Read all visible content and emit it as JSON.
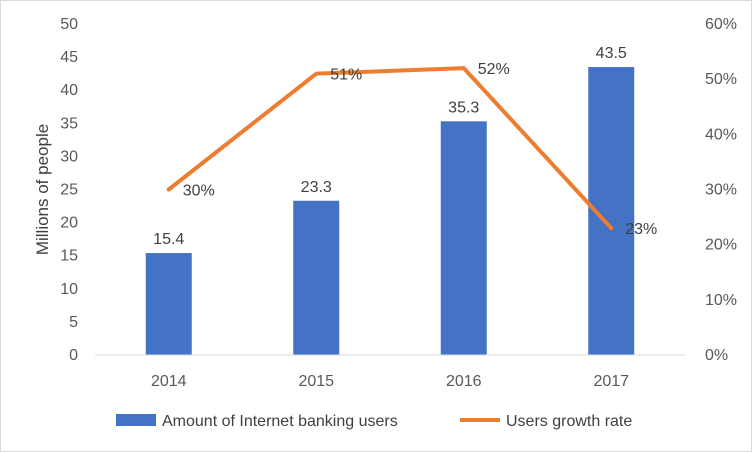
{
  "chart_data": {
    "type": "bar",
    "categories": [
      "2014",
      "2015",
      "2016",
      "2017"
    ],
    "series": [
      {
        "name": "Amount of Internet banking users",
        "type": "bar",
        "axis": "left",
        "values": [
          15.4,
          23.3,
          35.3,
          43.5
        ],
        "labels": [
          "15.4",
          "23.3",
          "35.3",
          "43.5"
        ],
        "color": "#4472c4"
      },
      {
        "name": "Users growth rate",
        "type": "line",
        "axis": "right",
        "values": [
          0.3,
          0.51,
          0.52,
          0.23
        ],
        "labels": [
          "30%",
          "51%",
          "52%",
          "23%"
        ],
        "color": "#ed7d31"
      }
    ],
    "ylabel": "Millions of people",
    "ylim": [
      0,
      50
    ],
    "y_ticks": [
      "0",
      "5",
      "10",
      "15",
      "20",
      "25",
      "30",
      "35",
      "40",
      "45",
      "50"
    ],
    "y2lim": [
      0,
      0.6
    ],
    "y2_ticks": [
      "0%",
      "10%",
      "20%",
      "30%",
      "40%",
      "50%",
      "60%"
    ],
    "grid": false,
    "legend_position": "bottom"
  }
}
